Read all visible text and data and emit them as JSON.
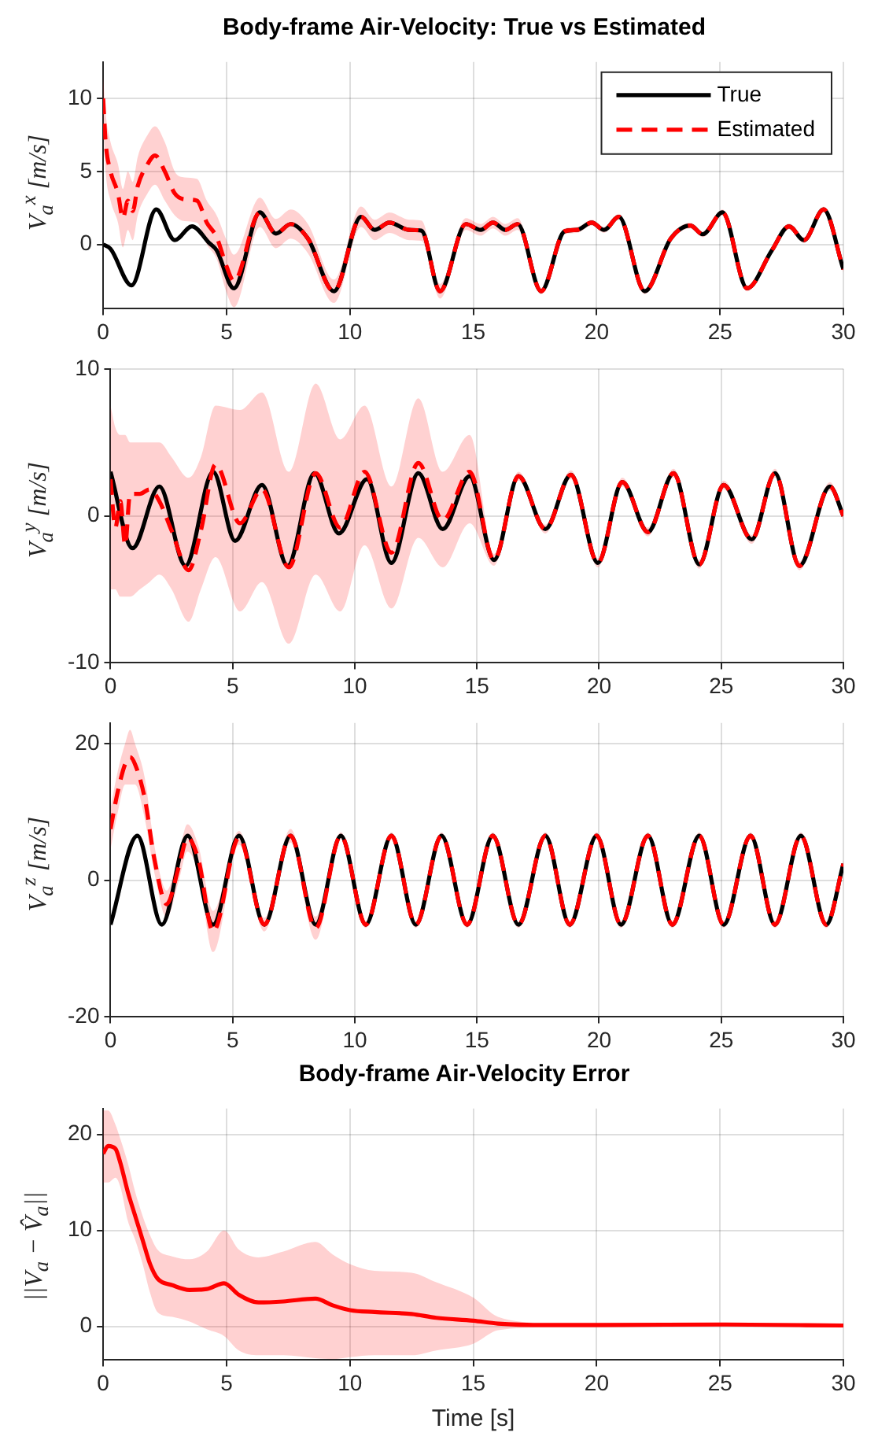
{
  "chart_data": [
    {
      "type": "line",
      "title": "Body-frame Air-Velocity: True vs Estimated",
      "ylabel": "V$_{a}$$^{x}$ [m/s]",
      "xlim": [
        0,
        30
      ],
      "xticks": [
        0,
        5,
        10,
        15,
        20,
        25,
        30
      ],
      "ylim": [
        -4.4,
        12.5
      ],
      "yticks": [
        0,
        5,
        10
      ],
      "grid": true,
      "legend": "top right",
      "series": [
        {
          "name": "True",
          "color": "#000000",
          "line_style": "solid",
          "x": [
            0,
            0.3,
            1.15,
            2.15,
            2.9,
            3.6,
            4.3,
            4.6,
            5.3,
            6.35,
            7.0,
            7.6,
            8.3,
            9.35,
            10.45,
            11.0,
            11.6,
            12.4,
            12.9,
            13.65,
            14.7,
            15.3,
            15.8,
            16.3,
            16.8,
            17.75,
            18.7,
            19.2,
            19.8,
            20.3,
            20.9,
            21.95,
            23.0,
            23.8,
            24.3,
            25.1,
            26.1,
            27.1,
            27.8,
            28.4,
            29.2,
            30
          ],
          "values": [
            0,
            -0.3,
            -2.8,
            2.4,
            0.3,
            1.25,
            0.1,
            -0.4,
            -3.0,
            2.2,
            0.75,
            1.4,
            0.4,
            -3.2,
            1.9,
            1.0,
            1.5,
            1.0,
            0.95,
            -3.2,
            1.4,
            1.0,
            1.5,
            1.0,
            1.4,
            -3.2,
            0.9,
            1.0,
            1.5,
            1.0,
            1.9,
            -3.2,
            0.4,
            1.3,
            0.7,
            2.2,
            -3.0,
            -0.4,
            1.25,
            0.3,
            2.4,
            -1.7
          ]
        },
        {
          "name": "Estimated",
          "color": "#ff0000",
          "line_style": "dashed",
          "x": [
            0,
            0.1,
            0.3,
            0.6,
            0.8,
            1.0,
            1.2,
            1.4,
            1.8,
            2.1,
            2.5,
            2.9,
            3.3,
            3.8,
            4.2,
            4.6,
            5.0,
            5.3,
            6.35,
            7.0,
            7.6,
            8.3,
            9.35,
            10.45,
            11.0,
            11.6,
            12.4,
            12.9,
            13.65,
            14.7,
            15.3,
            15.8,
            16.3,
            16.8,
            17.75,
            18.7,
            19.2,
            19.8,
            20.3,
            20.9,
            21.95,
            23.0,
            23.8,
            24.3,
            25.1,
            26.1,
            27.1,
            27.8,
            28.4,
            29.2,
            30
          ],
          "values": [
            10,
            7,
            5,
            3.5,
            1.8,
            3.0,
            2.3,
            4.0,
            5.5,
            6.1,
            5.0,
            3.5,
            3.1,
            3.0,
            1.5,
            0.5,
            -1.5,
            -2.5,
            2.2,
            0.75,
            1.4,
            0.4,
            -3.2,
            1.9,
            1.0,
            1.5,
            1.0,
            0.95,
            -3.2,
            1.4,
            1.0,
            1.5,
            1.0,
            1.4,
            -3.2,
            0.9,
            1.0,
            1.5,
            1.0,
            1.9,
            -3.2,
            0.4,
            1.3,
            0.7,
            2.2,
            -3.0,
            -0.4,
            1.25,
            0.3,
            2.4,
            -1.7
          ],
          "upper": [
            11.5,
            9,
            7,
            5.5,
            3.8,
            5,
            4.3,
            6,
            7.5,
            8.1,
            7,
            5,
            4.6,
            4.5,
            3,
            2,
            0.3,
            -0.7,
            3.2,
            1.75,
            2.4,
            1.4,
            -2.4,
            2.6,
            1.7,
            2.2,
            1.7,
            1.65,
            -2.7,
            1.8,
            1.4,
            1.9,
            1.4,
            1.8,
            -3.0,
            1.1,
            1.2,
            1.7,
            1.2,
            2.1,
            -3.0,
            0.6,
            1.5,
            0.9,
            2.4,
            -2.8,
            -0.2,
            1.45,
            0.5,
            2.6,
            -1.5
          ],
          "lower": [
            8.5,
            5,
            3,
            1.5,
            -0.2,
            1,
            0.3,
            2,
            3.5,
            4.1,
            3,
            2,
            1.6,
            1.5,
            0,
            -1,
            -3.3,
            -4.3,
            1.2,
            -0.25,
            0.4,
            -0.6,
            -4.0,
            1.2,
            0.3,
            0.8,
            0.3,
            0.25,
            -3.7,
            1.0,
            0.6,
            1.1,
            0.6,
            1.0,
            -3.4,
            0.7,
            0.8,
            1.3,
            0.8,
            1.7,
            -3.4,
            0.2,
            1.1,
            0.5,
            2.0,
            -3.2,
            -0.6,
            1.05,
            0.1,
            2.2,
            -1.9
          ]
        }
      ]
    },
    {
      "type": "line",
      "ylabel": "V$_{a}$$^{y}$ [m/s]",
      "xlim": [
        0,
        30
      ],
      "xticks": [
        0,
        5,
        10,
        15,
        20,
        25,
        30
      ],
      "ylim": [
        -10,
        10
      ],
      "yticks": [
        -10,
        0,
        10
      ],
      "grid": true,
      "series": [
        {
          "color": "#000000",
          "line_style": "solid",
          "x": [
            0,
            0.9,
            2.0,
            3.07,
            4.2,
            5.1,
            6.2,
            7.25,
            8.35,
            9.35,
            10.5,
            11.5,
            12.6,
            13.6,
            14.7,
            15.7,
            16.7,
            17.8,
            18.85,
            19.95,
            20.95,
            22.0,
            23.05,
            24.1,
            25.1,
            26.25,
            27.2,
            28.2,
            29.45,
            30
          ],
          "values": [
            3.0,
            -2.2,
            2.0,
            -3.4,
            3.0,
            -1.7,
            2.1,
            -3.4,
            2.9,
            -1.2,
            2.5,
            -3.2,
            2.9,
            -0.9,
            2.7,
            -3.0,
            2.7,
            -0.9,
            2.8,
            -3.2,
            2.3,
            -1.1,
            2.9,
            -3.3,
            2.1,
            -1.6,
            2.9,
            -3.4,
            2.0,
            0
          ]
        },
        {
          "color": "#ff0000",
          "line_style": "dashed",
          "x": [
            0,
            0.2,
            0.4,
            0.6,
            0.8,
            1.2,
            1.6,
            2.0,
            2.5,
            3.2,
            3.7,
            4.3,
            5.3,
            6.2,
            7.3,
            8.4,
            9.4,
            10.4,
            11.5,
            12.6,
            13.6,
            14.7,
            15.7,
            16.7,
            17.8,
            18.85,
            19.95,
            20.95,
            22.0,
            23.05,
            24.1,
            25.1,
            26.25,
            27.2,
            28.2,
            29.45,
            30
          ],
          "values": [
            2.5,
            -0.8,
            1.0,
            -2.0,
            1.5,
            1.5,
            1.8,
            1.0,
            -1.0,
            -3.7,
            -1.0,
            3.5,
            -0.5,
            1.8,
            -3.5,
            2.9,
            -0.8,
            3.0,
            -2.5,
            3.6,
            -0.3,
            3.0,
            -3.0,
            2.7,
            -0.9,
            2.8,
            -3.2,
            2.3,
            -1.1,
            2.9,
            -3.3,
            2.1,
            -1.6,
            2.9,
            -3.4,
            2.0,
            0
          ],
          "upper": [
            7.5,
            6,
            5.5,
            5.5,
            5,
            5,
            5,
            5,
            4,
            2.6,
            4,
            7.5,
            7.2,
            8.4,
            3,
            9,
            5.2,
            7.5,
            2,
            8,
            3,
            5.5,
            -2.6,
            3.0,
            -0.6,
            3.1,
            -2.9,
            2.6,
            -0.8,
            3.2,
            -3.0,
            2.4,
            -1.3,
            3.2,
            -3.1,
            2.3,
            0.3
          ],
          "lower": [
            -5,
            -5,
            -5.5,
            -5.5,
            -5.5,
            -5,
            -4.5,
            -4,
            -5,
            -7.2,
            -5,
            -2.8,
            -6.5,
            -4.5,
            -8.7,
            -4,
            -6.5,
            -2,
            -6.3,
            -1.5,
            -3.5,
            -0.5,
            -3.4,
            2.4,
            -1.2,
            2.5,
            -3.5,
            2.0,
            -1.4,
            2.6,
            -3.6,
            1.8,
            -1.9,
            2.6,
            -3.7,
            1.7,
            -0.3
          ]
        }
      ]
    },
    {
      "type": "line",
      "ylabel": "V$_{a}$$^{z}$ [m/s]",
      "xlim": [
        0,
        30
      ],
      "xticks": [
        0,
        5,
        10,
        15,
        20,
        25,
        30
      ],
      "ylim": [
        -20,
        23
      ],
      "yticks": [
        -20,
        0,
        20
      ],
      "grid": true,
      "series": [
        {
          "color": "#000000",
          "line_style": "solid",
          "x": [
            0,
            1.1,
            2.1,
            3.16,
            4.2,
            5.26,
            6.3,
            7.37,
            8.4,
            9.43,
            10.45,
            11.5,
            12.5,
            13.55,
            14.6,
            15.65,
            16.7,
            17.8,
            18.8,
            19.9,
            20.9,
            22.0,
            23.0,
            24.1,
            25.1,
            26.2,
            27.2,
            28.26,
            29.3,
            30
          ],
          "values": [
            -6.5,
            6.5,
            -6.5,
            6.5,
            -6.5,
            6.5,
            -6.5,
            6.5,
            -6.5,
            6.5,
            -6.5,
            6.5,
            -6.5,
            6.5,
            -6.5,
            6.5,
            -6.5,
            6.5,
            -6.5,
            6.5,
            -6.5,
            6.5,
            -6.5,
            6.5,
            -6.5,
            6.5,
            -6.5,
            6.5,
            -6.5,
            2.4
          ]
        },
        {
          "color": "#ff0000",
          "line_style": "dashed",
          "x": [
            0,
            0.3,
            0.6,
            0.8,
            1.0,
            1.4,
            1.8,
            2.3,
            2.8,
            3.15,
            3.6,
            4.2,
            5.26,
            6.3,
            7.37,
            8.4,
            9.43,
            10.45,
            11.5,
            12.5,
            13.55,
            14.6,
            15.65,
            16.7,
            17.8,
            18.8,
            19.9,
            20.9,
            22.0,
            23.0,
            24.1,
            25.1,
            26.2,
            27.2,
            28.26,
            29.3,
            30
          ],
          "values": [
            7.5,
            13,
            17,
            18,
            17,
            12,
            3,
            -3.5,
            2,
            6.2,
            3,
            -7.5,
            6.2,
            -6.5,
            6.5,
            -7,
            6.5,
            -6.5,
            6.5,
            -6.5,
            6.5,
            -6.5,
            6.5,
            -6.5,
            6.5,
            -6.5,
            6.5,
            -6.5,
            6.5,
            -6.5,
            6.5,
            -6.5,
            6.5,
            -6.5,
            6.5,
            -6.5,
            2.4
          ],
          "upper": [
            10.5,
            16,
            20,
            22,
            20,
            15,
            5,
            -1.5,
            4,
            8.2,
            5,
            -4.5,
            7.2,
            -5.5,
            7.5,
            -5.3,
            7,
            -6,
            7,
            -6,
            7,
            -6,
            7,
            -6,
            7,
            -6,
            7,
            -6,
            7,
            -6,
            7,
            -6,
            7,
            -6,
            7,
            -6,
            2.9
          ],
          "lower": [
            4.5,
            10,
            14,
            14,
            14,
            9,
            1,
            -5.5,
            0,
            4.2,
            1,
            -10.5,
            5.2,
            -7.5,
            5.5,
            -8.7,
            6,
            -7,
            6,
            -7,
            6,
            -7,
            6,
            -7,
            6,
            -7,
            6,
            -7,
            6,
            -7,
            6,
            -7,
            6,
            -7,
            6,
            -7,
            1.9
          ]
        }
      ]
    },
    {
      "type": "line",
      "title": "Body-frame Air-Velocity Error",
      "xlabel": "Time [s]",
      "ylabel": "||V$_{a}$ − V̂$_{a}$||",
      "xlim": [
        0,
        30
      ],
      "xticks": [
        0,
        5,
        10,
        15,
        20,
        25,
        30
      ],
      "ylim": [
        -3.5,
        22.7
      ],
      "yticks": [
        0,
        10,
        20
      ],
      "grid": true,
      "series": [
        {
          "color": "#ff0000",
          "line_style": "solid",
          "x": [
            0,
            0.2,
            0.5,
            0.7,
            1.0,
            1.3,
            1.6,
            1.9,
            2.2,
            2.8,
            3.5,
            4.2,
            4.9,
            5.5,
            6.3,
            7.3,
            8.6,
            9.3,
            10,
            11,
            12.5,
            13.5,
            15,
            16,
            18,
            20,
            25,
            30
          ],
          "values": [
            18,
            18.8,
            18.5,
            17,
            14,
            11.5,
            9,
            6.5,
            5,
            4.3,
            3.8,
            3.9,
            4.5,
            3.3,
            2.5,
            2.6,
            2.9,
            2.2,
            1.7,
            1.5,
            1.3,
            0.9,
            0.6,
            0.3,
            0.15,
            0.15,
            0.2,
            0.1
          ],
          "upper": [
            22.5,
            22.5,
            21,
            19.5,
            17,
            14,
            11.5,
            9.5,
            8,
            7.3,
            7.0,
            7.8,
            10,
            8.0,
            7.2,
            7.8,
            8.8,
            7.5,
            6.5,
            5.8,
            5.6,
            4.6,
            3.0,
            1.0,
            0.4,
            0.4,
            0.4,
            0.3
          ],
          "lower": [
            15,
            15,
            15.5,
            14.5,
            11,
            9,
            6.5,
            3.5,
            1.5,
            1.0,
            0.5,
            -0.3,
            -1.0,
            -2.5,
            -3.0,
            -3.0,
            -3.3,
            -3.4,
            -3.2,
            -3.0,
            -3.0,
            -2.5,
            -1.8,
            -0.4,
            -0.1,
            -0.1,
            0.0,
            -0.1
          ]
        }
      ]
    }
  ]
}
